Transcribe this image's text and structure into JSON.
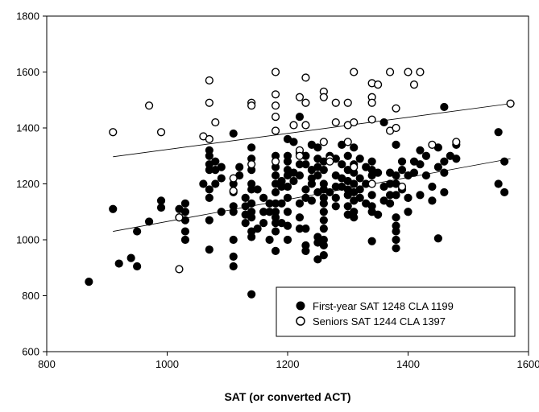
{
  "chart_data": {
    "type": "scatter",
    "title": "",
    "xlabel": "SAT (or converted ACT)",
    "ylabel": "",
    "xlim": [
      800,
      1600
    ],
    "ylim": [
      600,
      1800
    ],
    "xticks": [
      "800",
      "1000",
      "1200",
      "1400",
      "1600"
    ],
    "yticks": [
      "600",
      "800",
      "1000",
      "1200",
      "1400",
      "1600",
      "1800"
    ],
    "grid": false,
    "legend_position": "bottom-right",
    "series": [
      {
        "name": "First-year SAT 1248 CLA 1199",
        "marker": "filled-circle",
        "color": "#000000",
        "trendline": [
          [
            910,
            1030
          ],
          [
            1570,
            1290
          ]
        ],
        "points": [
          [
            870,
            850
          ],
          [
            910,
            1110
          ],
          [
            920,
            915
          ],
          [
            940,
            935
          ],
          [
            950,
            905
          ],
          [
            950,
            1030
          ],
          [
            970,
            1065
          ],
          [
            990,
            1140
          ],
          [
            990,
            1115
          ],
          [
            1020,
            1110
          ],
          [
            1020,
            1080
          ],
          [
            1030,
            1130
          ],
          [
            1030,
            1100
          ],
          [
            1030,
            1070
          ],
          [
            1030,
            1030
          ],
          [
            1030,
            1000
          ],
          [
            1060,
            1200
          ],
          [
            1070,
            1320
          ],
          [
            1070,
            1300
          ],
          [
            1070,
            1270
          ],
          [
            1070,
            1250
          ],
          [
            1070,
            1180
          ],
          [
            1070,
            1150
          ],
          [
            1070,
            1070
          ],
          [
            1070,
            965
          ],
          [
            1080,
            1280
          ],
          [
            1080,
            1250
          ],
          [
            1080,
            1200
          ],
          [
            1090,
            1260
          ],
          [
            1090,
            1220
          ],
          [
            1090,
            1100
          ],
          [
            1110,
            1380
          ],
          [
            1110,
            1200
          ],
          [
            1110,
            1170
          ],
          [
            1110,
            1120
          ],
          [
            1110,
            1100
          ],
          [
            1110,
            1000
          ],
          [
            1110,
            940
          ],
          [
            1110,
            905
          ],
          [
            1120,
            1260
          ],
          [
            1120,
            1230
          ],
          [
            1130,
            1150
          ],
          [
            1130,
            1120
          ],
          [
            1130,
            1090
          ],
          [
            1130,
            1060
          ],
          [
            1140,
            1330
          ],
          [
            1140,
            1290
          ],
          [
            1140,
            1250
          ],
          [
            1140,
            1200
          ],
          [
            1140,
            1180
          ],
          [
            1140,
            1130
          ],
          [
            1140,
            1100
          ],
          [
            1140,
            1080
          ],
          [
            1140,
            1030
          ],
          [
            1140,
            1010
          ],
          [
            1140,
            805
          ],
          [
            1150,
            1180
          ],
          [
            1150,
            1040
          ],
          [
            1160,
            1150
          ],
          [
            1160,
            1100
          ],
          [
            1160,
            1060
          ],
          [
            1170,
            1130
          ],
          [
            1170,
            1100
          ],
          [
            1170,
            1000
          ],
          [
            1180,
            1300
          ],
          [
            1180,
            1260
          ],
          [
            1180,
            1230
          ],
          [
            1180,
            1200
          ],
          [
            1180,
            1170
          ],
          [
            1180,
            1130
          ],
          [
            1180,
            1100
          ],
          [
            1180,
            1080
          ],
          [
            1180,
            1060
          ],
          [
            1180,
            1030
          ],
          [
            1180,
            960
          ],
          [
            1190,
            1210
          ],
          [
            1190,
            1190
          ],
          [
            1190,
            1130
          ],
          [
            1190,
            1060
          ],
          [
            1200,
            1360
          ],
          [
            1200,
            1300
          ],
          [
            1200,
            1280
          ],
          [
            1200,
            1250
          ],
          [
            1200,
            1230
          ],
          [
            1200,
            1190
          ],
          [
            1200,
            1150
          ],
          [
            1200,
            1100
          ],
          [
            1200,
            1050
          ],
          [
            1200,
            1000
          ],
          [
            1210,
            1350
          ],
          [
            1210,
            1240
          ],
          [
            1210,
            1210
          ],
          [
            1220,
            1440
          ],
          [
            1220,
            1310
          ],
          [
            1220,
            1270
          ],
          [
            1220,
            1230
          ],
          [
            1220,
            1130
          ],
          [
            1220,
            1080
          ],
          [
            1220,
            1040
          ],
          [
            1230,
            1300
          ],
          [
            1230,
            1270
          ],
          [
            1230,
            1180
          ],
          [
            1230,
            1150
          ],
          [
            1230,
            1040
          ],
          [
            1230,
            980
          ],
          [
            1230,
            960
          ],
          [
            1240,
            1340
          ],
          [
            1240,
            1250
          ],
          [
            1240,
            1220
          ],
          [
            1240,
            1200
          ],
          [
            1240,
            1140
          ],
          [
            1250,
            1330
          ],
          [
            1250,
            1290
          ],
          [
            1250,
            1260
          ],
          [
            1250,
            1230
          ],
          [
            1250,
            1170
          ],
          [
            1250,
            1010
          ],
          [
            1250,
            990
          ],
          [
            1250,
            930
          ],
          [
            1260,
            1280
          ],
          [
            1260,
            1250
          ],
          [
            1260,
            1200
          ],
          [
            1260,
            1180
          ],
          [
            1260,
            1150
          ],
          [
            1260,
            1130
          ],
          [
            1260,
            1100
          ],
          [
            1260,
            1070
          ],
          [
            1260,
            1040
          ],
          [
            1260,
            1000
          ],
          [
            1260,
            980
          ],
          [
            1260,
            945
          ],
          [
            1270,
            1300
          ],
          [
            1270,
            1170
          ],
          [
            1280,
            1290
          ],
          [
            1280,
            1230
          ],
          [
            1280,
            1190
          ],
          [
            1280,
            1150
          ],
          [
            1280,
            1120
          ],
          [
            1290,
            1340
          ],
          [
            1290,
            1270
          ],
          [
            1290,
            1220
          ],
          [
            1290,
            1190
          ],
          [
            1300,
            1300
          ],
          [
            1300,
            1250
          ],
          [
            1300,
            1210
          ],
          [
            1300,
            1180
          ],
          [
            1300,
            1160
          ],
          [
            1300,
            1120
          ],
          [
            1300,
            1090
          ],
          [
            1310,
            1330
          ],
          [
            1310,
            1270
          ],
          [
            1310,
            1240
          ],
          [
            1310,
            1200
          ],
          [
            1310,
            1170
          ],
          [
            1310,
            1140
          ],
          [
            1310,
            1100
          ],
          [
            1310,
            1080
          ],
          [
            1320,
            1290
          ],
          [
            1320,
            1220
          ],
          [
            1320,
            1180
          ],
          [
            1320,
            1150
          ],
          [
            1330,
            1260
          ],
          [
            1330,
            1200
          ],
          [
            1330,
            1130
          ],
          [
            1340,
            1280
          ],
          [
            1340,
            1250
          ],
          [
            1340,
            1230
          ],
          [
            1340,
            1160
          ],
          [
            1340,
            1120
          ],
          [
            1340,
            1100
          ],
          [
            1340,
            995
          ],
          [
            1350,
            1240
          ],
          [
            1350,
            1090
          ],
          [
            1360,
            1420
          ],
          [
            1360,
            1190
          ],
          [
            1360,
            1140
          ],
          [
            1370,
            1240
          ],
          [
            1370,
            1200
          ],
          [
            1370,
            1160
          ],
          [
            1370,
            1130
          ],
          [
            1380,
            1340
          ],
          [
            1380,
            1230
          ],
          [
            1380,
            1200
          ],
          [
            1380,
            1160
          ],
          [
            1380,
            1080
          ],
          [
            1380,
            1050
          ],
          [
            1380,
            1030
          ],
          [
            1380,
            1000
          ],
          [
            1380,
            970
          ],
          [
            1390,
            1280
          ],
          [
            1390,
            1250
          ],
          [
            1390,
            1180
          ],
          [
            1400,
            1230
          ],
          [
            1400,
            1150
          ],
          [
            1400,
            1100
          ],
          [
            1410,
            1280
          ],
          [
            1410,
            1240
          ],
          [
            1420,
            1320
          ],
          [
            1420,
            1270
          ],
          [
            1420,
            1160
          ],
          [
            1430,
            1300
          ],
          [
            1430,
            1230
          ],
          [
            1440,
            1190
          ],
          [
            1440,
            1140
          ],
          [
            1450,
            1330
          ],
          [
            1450,
            1260
          ],
          [
            1450,
            1005
          ],
          [
            1460,
            1475
          ],
          [
            1460,
            1280
          ],
          [
            1460,
            1240
          ],
          [
            1460,
            1170
          ],
          [
            1470,
            1300
          ],
          [
            1480,
            1340
          ],
          [
            1480,
            1290
          ],
          [
            1550,
            1385
          ],
          [
            1550,
            1200
          ],
          [
            1560,
            1280
          ],
          [
            1560,
            1170
          ]
        ]
      },
      {
        "name": "Seniors SAT 1244 CLA 1397",
        "marker": "open-circle",
        "color": "#000000",
        "trendline": [
          [
            910,
            1297
          ],
          [
            1570,
            1487
          ]
        ],
        "points": [
          [
            910,
            1385
          ],
          [
            970,
            1480
          ],
          [
            990,
            1385
          ],
          [
            1020,
            895
          ],
          [
            1020,
            1080
          ],
          [
            1060,
            1370
          ],
          [
            1070,
            1570
          ],
          [
            1070,
            1490
          ],
          [
            1070,
            1360
          ],
          [
            1080,
            1420
          ],
          [
            1110,
            1220
          ],
          [
            1110,
            1175
          ],
          [
            1140,
            1490
          ],
          [
            1140,
            1480
          ],
          [
            1140,
            1270
          ],
          [
            1180,
            1600
          ],
          [
            1180,
            1520
          ],
          [
            1180,
            1480
          ],
          [
            1180,
            1440
          ],
          [
            1180,
            1390
          ],
          [
            1180,
            1280
          ],
          [
            1210,
            1410
          ],
          [
            1220,
            1510
          ],
          [
            1220,
            1320
          ],
          [
            1220,
            1300
          ],
          [
            1230,
            1580
          ],
          [
            1230,
            1490
          ],
          [
            1230,
            1410
          ],
          [
            1260,
            1530
          ],
          [
            1260,
            1510
          ],
          [
            1260,
            1350
          ],
          [
            1270,
            1290
          ],
          [
            1270,
            1280
          ],
          [
            1280,
            1490
          ],
          [
            1280,
            1420
          ],
          [
            1300,
            1490
          ],
          [
            1300,
            1410
          ],
          [
            1300,
            1350
          ],
          [
            1310,
            1600
          ],
          [
            1310,
            1420
          ],
          [
            1310,
            1260
          ],
          [
            1340,
            1560
          ],
          [
            1340,
            1510
          ],
          [
            1340,
            1490
          ],
          [
            1340,
            1430
          ],
          [
            1340,
            1200
          ],
          [
            1350,
            1555
          ],
          [
            1370,
            1600
          ],
          [
            1370,
            1390
          ],
          [
            1380,
            1470
          ],
          [
            1380,
            1400
          ],
          [
            1390,
            1190
          ],
          [
            1400,
            1600
          ],
          [
            1410,
            1555
          ],
          [
            1420,
            1600
          ],
          [
            1440,
            1340
          ],
          [
            1480,
            1350
          ],
          [
            1570,
            1487
          ]
        ]
      }
    ]
  }
}
